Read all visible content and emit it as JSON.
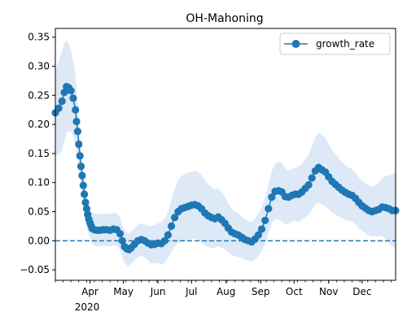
{
  "chart_data": {
    "type": "line",
    "title": "OH-Mahoning",
    "xlabel": "",
    "ylabel": "",
    "x_tick_labels": [
      "Apr",
      "May",
      "Jun",
      "Jul",
      "Aug",
      "Sep",
      "Oct",
      "Nov",
      "Dec"
    ],
    "x_tick_year": "2020",
    "x_domain": [
      "2020-03-01",
      "2020-12-31"
    ],
    "y_ticks": [
      "−0.05",
      "0.00",
      "0.05",
      "0.10",
      "0.15",
      "0.20",
      "0.25",
      "0.30",
      "0.35"
    ],
    "ylim": [
      -0.068,
      0.365
    ],
    "legend": {
      "label": "growth_rate",
      "placement": "upper right"
    },
    "reference_line": {
      "y": 0.0,
      "style": "dashed"
    },
    "colors": {
      "series": "#1f77b4",
      "band": "#dde9f6"
    },
    "series": [
      {
        "name": "growth_rate",
        "x": [
          "2020-03-01",
          "2020-03-04",
          "2020-03-07",
          "2020-03-09",
          "2020-03-11",
          "2020-03-13",
          "2020-03-15",
          "2020-03-17",
          "2020-03-19",
          "2020-03-20",
          "2020-03-21",
          "2020-03-22",
          "2020-03-23",
          "2020-03-24",
          "2020-03-25",
          "2020-03-26",
          "2020-03-27",
          "2020-03-28",
          "2020-03-29",
          "2020-03-30",
          "2020-03-31",
          "2020-04-01",
          "2020-04-02",
          "2020-04-03",
          "2020-04-05",
          "2020-04-07",
          "2020-04-10",
          "2020-04-13",
          "2020-04-16",
          "2020-04-19",
          "2020-04-22",
          "2020-04-25",
          "2020-04-28",
          "2020-04-30",
          "2020-05-02",
          "2020-05-04",
          "2020-05-06",
          "2020-05-08",
          "2020-05-11",
          "2020-05-14",
          "2020-05-17",
          "2020-05-20",
          "2020-05-23",
          "2020-05-26",
          "2020-05-29",
          "2020-06-01",
          "2020-06-04",
          "2020-06-07",
          "2020-06-10",
          "2020-06-13",
          "2020-06-16",
          "2020-06-19",
          "2020-06-22",
          "2020-06-25",
          "2020-06-28",
          "2020-07-01",
          "2020-07-04",
          "2020-07-07",
          "2020-07-10",
          "2020-07-13",
          "2020-07-16",
          "2020-07-19",
          "2020-07-22",
          "2020-07-25",
          "2020-07-28",
          "2020-07-31",
          "2020-08-03",
          "2020-08-06",
          "2020-08-09",
          "2020-08-12",
          "2020-08-15",
          "2020-08-18",
          "2020-08-21",
          "2020-08-24",
          "2020-08-27",
          "2020-08-30",
          "2020-09-02",
          "2020-09-05",
          "2020-09-08",
          "2020-09-11",
          "2020-09-14",
          "2020-09-17",
          "2020-09-20",
          "2020-09-23",
          "2020-09-26",
          "2020-09-29",
          "2020-10-02",
          "2020-10-05",
          "2020-10-08",
          "2020-10-11",
          "2020-10-14",
          "2020-10-17",
          "2020-10-20",
          "2020-10-23",
          "2020-10-26",
          "2020-10-29",
          "2020-11-01",
          "2020-11-04",
          "2020-11-07",
          "2020-11-10",
          "2020-11-13",
          "2020-11-16",
          "2020-11-19",
          "2020-11-22",
          "2020-11-25",
          "2020-11-28",
          "2020-12-01",
          "2020-12-04",
          "2020-12-07",
          "2020-12-10",
          "2020-12-13",
          "2020-12-16",
          "2020-12-19",
          "2020-12-22",
          "2020-12-25",
          "2020-12-28",
          "2020-12-31"
        ],
        "values": [
          0.22,
          0.228,
          0.24,
          0.255,
          0.265,
          0.263,
          0.258,
          0.245,
          0.225,
          0.205,
          0.188,
          0.166,
          0.146,
          0.128,
          0.112,
          0.095,
          0.08,
          0.066,
          0.055,
          0.045,
          0.037,
          0.031,
          0.026,
          0.021,
          0.019,
          0.018,
          0.018,
          0.019,
          0.019,
          0.018,
          0.02,
          0.019,
          0.012,
          0.0,
          -0.01,
          -0.014,
          -0.015,
          -0.012,
          -0.006,
          0.0,
          0.002,
          0.0,
          -0.004,
          -0.007,
          -0.006,
          -0.004,
          -0.005,
          0.0,
          0.01,
          0.025,
          0.04,
          0.05,
          0.055,
          0.057,
          0.059,
          0.061,
          0.062,
          0.06,
          0.055,
          0.048,
          0.043,
          0.04,
          0.038,
          0.041,
          0.036,
          0.03,
          0.022,
          0.015,
          0.012,
          0.01,
          0.006,
          0.002,
          0.0,
          -0.002,
          0.003,
          0.01,
          0.02,
          0.035,
          0.055,
          0.075,
          0.085,
          0.086,
          0.084,
          0.076,
          0.075,
          0.078,
          0.08,
          0.08,
          0.084,
          0.09,
          0.096,
          0.108,
          0.12,
          0.126,
          0.122,
          0.118,
          0.11,
          0.102,
          0.097,
          0.092,
          0.087,
          0.083,
          0.08,
          0.078,
          0.073,
          0.066,
          0.06,
          0.056,
          0.052,
          0.05,
          0.052,
          0.054,
          0.058,
          0.057,
          0.055,
          0.052,
          0.052
        ],
        "band_halfwidth": [
          0.075,
          0.08,
          0.085,
          0.085,
          0.08,
          0.075,
          0.07,
          0.065,
          0.06,
          0.055,
          0.05,
          0.045,
          0.04,
          0.036,
          0.032,
          0.03,
          0.028,
          0.027,
          0.026,
          0.026,
          0.026,
          0.026,
          0.026,
          0.027,
          0.027,
          0.028,
          0.028,
          0.028,
          0.028,
          0.028,
          0.028,
          0.028,
          0.028,
          0.028,
          0.028,
          0.028,
          0.028,
          0.028,
          0.028,
          0.028,
          0.028,
          0.028,
          0.03,
          0.032,
          0.033,
          0.034,
          0.036,
          0.038,
          0.04,
          0.045,
          0.05,
          0.054,
          0.056,
          0.058,
          0.058,
          0.058,
          0.058,
          0.058,
          0.058,
          0.056,
          0.054,
          0.052,
          0.05,
          0.05,
          0.048,
          0.045,
          0.042,
          0.04,
          0.038,
          0.038,
          0.036,
          0.035,
          0.034,
          0.034,
          0.035,
          0.036,
          0.038,
          0.04,
          0.042,
          0.045,
          0.048,
          0.05,
          0.05,
          0.048,
          0.046,
          0.045,
          0.046,
          0.047,
          0.048,
          0.05,
          0.052,
          0.055,
          0.058,
          0.06,
          0.06,
          0.058,
          0.056,
          0.054,
          0.052,
          0.05,
          0.048,
          0.047,
          0.046,
          0.045,
          0.044,
          0.044,
          0.043,
          0.043,
          0.043,
          0.043,
          0.044,
          0.046,
          0.05,
          0.054,
          0.058,
          0.062,
          0.065
        ]
      }
    ]
  }
}
